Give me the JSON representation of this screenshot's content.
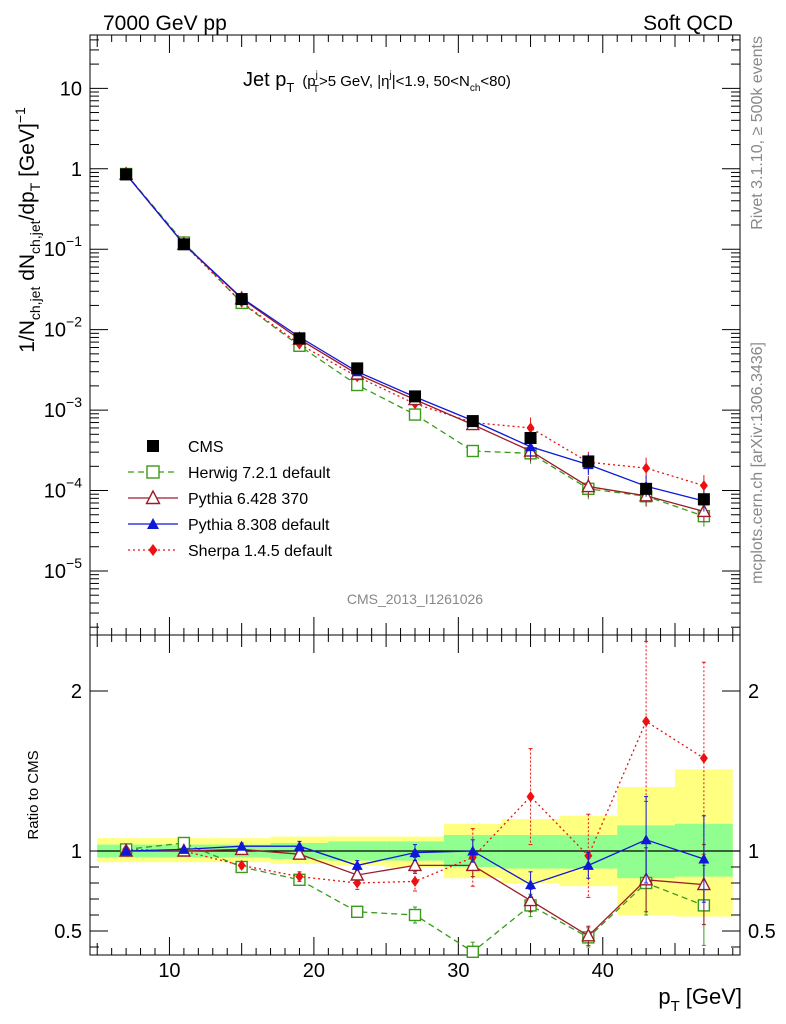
{
  "header": {
    "left": "7000 GeV pp",
    "right": "Soft QCD"
  },
  "side_labels": {
    "rivet": "Rivet 3.1.10, ≥ 500k events",
    "mcplots": "mcplots.cern.ch [arXiv:1306.3436]"
  },
  "analysis_id": "CMS_2013_I1261026",
  "title": {
    "main": "Jet p",
    "main_sub": "T",
    "cut_open": "(p",
    "cut_sup": "j",
    "cut_sub": "T",
    "cut_mid": ">5 GeV, |η",
    "cut_sup2": "j",
    "cut_mid2": "|<1.9, 50<N",
    "cut_sub2": "ch",
    "cut_close": "<80)"
  },
  "ylabel_upper": "1/N_ch,jet dN_ch,jet/dp_T [GeV]^-1",
  "ylabel_lower": "Ratio to CMS",
  "xlabel": {
    "main": "p",
    "sub": "T",
    "unit": "[GeV]"
  },
  "colors": {
    "cms": "#000000",
    "herwig": "#3a9a1a",
    "pythia6": "#9b1c2a",
    "pythia8": "#1018d8",
    "sherpa": "#ee1010",
    "band_outer": "#ffff80",
    "band_inner": "#90ff90"
  },
  "chart_data": [
    {
      "type": "line",
      "panel": "main",
      "yscale": "log",
      "xlim": [
        4.5,
        49.5
      ],
      "ylim": [
        1.6e-06,
        46
      ],
      "y_ticks": [
        {
          "value": 10,
          "label": "10"
        },
        {
          "value": 1,
          "label": "1"
        },
        {
          "value": 0.1,
          "label": "10^-1",
          "base": "10",
          "exp": "−1"
        },
        {
          "value": 0.01,
          "label": "10^-2",
          "base": "10",
          "exp": "−2"
        },
        {
          "value": 0.001,
          "label": "10^-3",
          "base": "10",
          "exp": "−3"
        },
        {
          "value": 0.0001,
          "label": "10^-4",
          "base": "10",
          "exp": "−4"
        },
        {
          "value": 1e-05,
          "label": "10^-5",
          "base": "10",
          "exp": "−5"
        }
      ],
      "x": [
        7,
        11,
        15,
        19,
        23,
        27,
        31,
        35,
        39,
        43,
        47
      ],
      "series": [
        {
          "name": "CMS",
          "key": "cms",
          "marker": "square-filled",
          "line": "none",
          "values": [
            0.85,
            0.115,
            0.024,
            0.0078,
            0.0033,
            0.00148,
            0.00073,
            0.00045,
            0.00023,
            0.000105,
            7.8e-05
          ]
        },
        {
          "name": "Herwig 7.2.1 default",
          "key": "herwig",
          "marker": "square-open",
          "line": "dashed",
          "values": [
            0.86,
            0.121,
            0.0215,
            0.0063,
            0.00205,
            0.00088,
            0.00031,
            0.00029,
            0.000105,
            8.5e-05,
            4.8e-05
          ]
        },
        {
          "name": "Pythia 6.428 370",
          "key": "pythia6",
          "marker": "triangle-open",
          "line": "solid",
          "values": [
            0.855,
            0.115,
            0.0243,
            0.0076,
            0.0028,
            0.00135,
            0.00066,
            0.00031,
            0.000112,
            8.6e-05,
            5.5e-05
          ]
        },
        {
          "name": "Pythia 8.308 default",
          "key": "pythia8",
          "marker": "triangle-filled",
          "line": "solid",
          "values": [
            0.85,
            0.116,
            0.0248,
            0.0081,
            0.003,
            0.00146,
            0.00074,
            0.00035,
            0.00021,
            0.000113,
            7.4e-05
          ]
        },
        {
          "name": "Sherpa 1.4.5 default",
          "key": "sherpa",
          "marker": "diamond-filled",
          "line": "dotted",
          "values": [
            0.86,
            0.115,
            0.0219,
            0.0066,
            0.0026,
            0.0012,
            0.0007,
            0.0006,
            0.000225,
            0.00019,
            0.000115
          ]
        }
      ]
    },
    {
      "type": "line",
      "panel": "ratio",
      "ylim": [
        0.35,
        2.35
      ],
      "y_ticks": [
        {
          "value": 2,
          "label": "2"
        },
        {
          "value": 1,
          "label": "1"
        },
        {
          "value": 0.5,
          "label": "0.5"
        }
      ],
      "x_ticks": [
        10,
        20,
        30,
        40
      ],
      "x": [
        7,
        11,
        15,
        19,
        23,
        27,
        31,
        35,
        39,
        43,
        47
      ],
      "band": {
        "x_edges": [
          5,
          9,
          13,
          17,
          21,
          25,
          29,
          33,
          37,
          41,
          45,
          49
        ],
        "outer": [
          [
            0.93,
            1.08
          ],
          [
            0.93,
            1.08
          ],
          [
            0.93,
            1.08
          ],
          [
            0.92,
            1.09
          ],
          [
            0.91,
            1.09
          ],
          [
            0.9,
            1.09
          ],
          [
            0.83,
            1.17
          ],
          [
            0.8,
            1.2
          ],
          [
            0.78,
            1.22
          ],
          [
            0.6,
            1.4
          ],
          [
            0.59,
            1.51
          ]
        ],
        "inner": [
          [
            0.96,
            1.04
          ],
          [
            0.96,
            1.04
          ],
          [
            0.96,
            1.04
          ],
          [
            0.95,
            1.05
          ],
          [
            0.94,
            1.06
          ],
          [
            0.94,
            1.06
          ],
          [
            0.9,
            1.1
          ],
          [
            0.89,
            1.1
          ],
          [
            0.89,
            1.1
          ],
          [
            0.83,
            1.16
          ],
          [
            0.84,
            1.17
          ]
        ]
      },
      "series": [
        {
          "name": "Herwig 7.2.1 default",
          "key": "herwig",
          "marker": "square-open",
          "line": "dashed",
          "values": [
            1.01,
            1.05,
            0.9,
            0.82,
            0.62,
            0.6,
            0.37,
            0.66,
            0.46,
            0.8,
            0.66
          ],
          "err": [
            0.01,
            0.01,
            0.02,
            0.02,
            0.03,
            0.05,
            0.06,
            0.07,
            0.06,
            0.2,
            0.25
          ]
        },
        {
          "name": "Pythia 6.428 370",
          "key": "pythia6",
          "marker": "triangle-open",
          "line": "solid",
          "values": [
            1.0,
            1.0,
            1.01,
            0.98,
            0.85,
            0.91,
            0.91,
            0.69,
            0.47,
            0.82,
            0.79
          ],
          "err": [
            0.01,
            0.01,
            0.02,
            0.02,
            0.03,
            0.05,
            0.07,
            0.07,
            0.06,
            0.2,
            0.25
          ]
        },
        {
          "name": "Pythia 8.308 default",
          "key": "pythia8",
          "marker": "triangle-filled",
          "line": "solid",
          "values": [
            1.0,
            1.01,
            1.03,
            1.03,
            0.91,
            0.99,
            1.0,
            0.79,
            0.91,
            1.07,
            0.95
          ],
          "err": [
            0.01,
            0.01,
            0.02,
            0.03,
            0.03,
            0.05,
            0.07,
            0.08,
            0.08,
            0.27,
            0.27
          ]
        },
        {
          "name": "Sherpa 1.4.5 default",
          "key": "sherpa",
          "marker": "diamond-filled",
          "line": "dotted",
          "values": [
            1.01,
            1.0,
            0.91,
            0.84,
            0.8,
            0.81,
            0.96,
            1.34,
            0.97,
            1.81,
            1.58
          ],
          "err": [
            0.01,
            0.01,
            0.02,
            0.03,
            0.04,
            0.06,
            0.18,
            0.3,
            0.26,
            0.5,
            0.6
          ]
        }
      ]
    }
  ]
}
